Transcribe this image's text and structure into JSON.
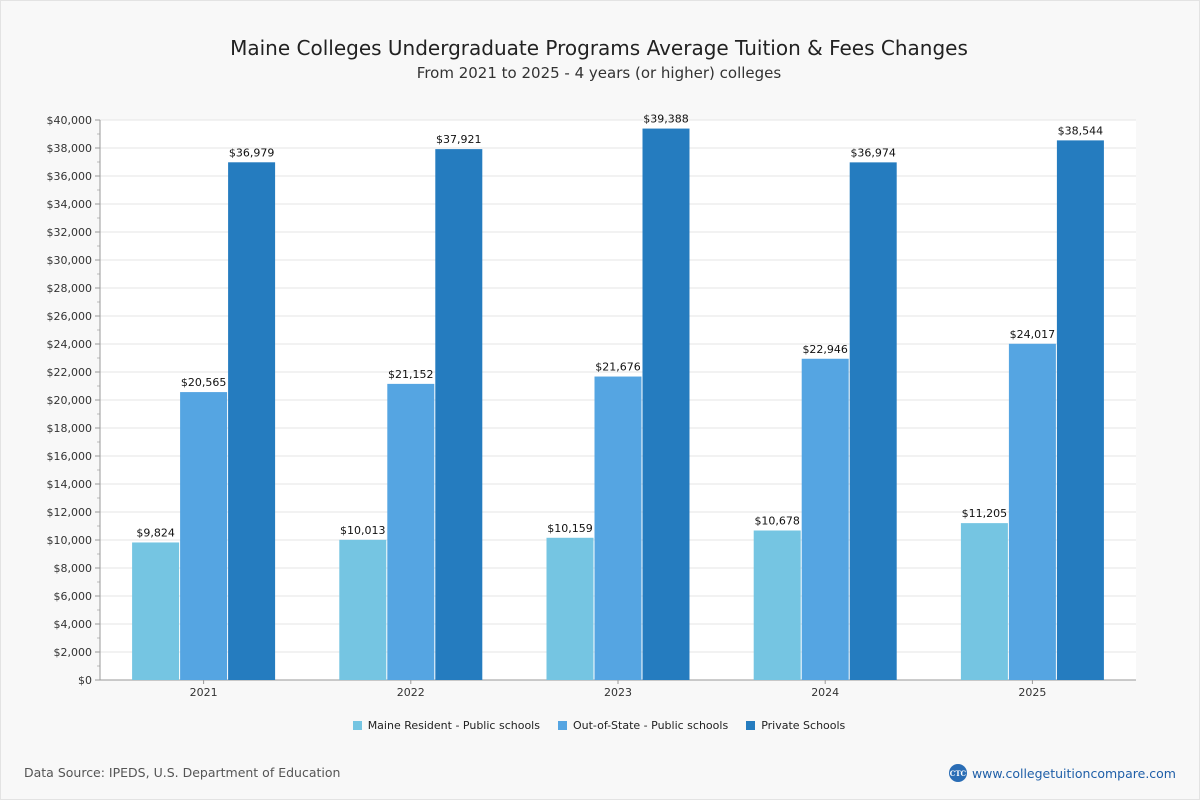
{
  "chart_data": {
    "type": "bar",
    "title": "Maine Colleges Undergraduate Programs Average Tuition & Fees Changes",
    "subtitle": "From 2021 to 2025 - 4 years (or higher) colleges",
    "categories": [
      "2021",
      "2022",
      "2023",
      "2024",
      "2025"
    ],
    "series": [
      {
        "name": "Maine Resident - Public schools",
        "color": "#75c5e2",
        "values": [
          9824,
          10013,
          10159,
          10678,
          11205
        ],
        "labels": [
          "$9,824",
          "$10,013",
          "$10,159",
          "$10,678",
          "$11,205"
        ]
      },
      {
        "name": "Out-of-State - Public schools",
        "color": "#55a5e2",
        "values": [
          20565,
          21152,
          21676,
          22946,
          24017
        ],
        "labels": [
          "$20,565",
          "$21,152",
          "$21,676",
          "$22,946",
          "$24,017"
        ]
      },
      {
        "name": "Private Schools",
        "color": "#257cbf",
        "values": [
          36979,
          37921,
          39388,
          36974,
          38544
        ],
        "labels": [
          "$36,979",
          "$37,921",
          "$39,388",
          "$36,974",
          "$38,544"
        ]
      }
    ],
    "ylim": [
      0,
      40000
    ],
    "yticks": [
      0,
      2000,
      4000,
      6000,
      8000,
      10000,
      12000,
      14000,
      16000,
      18000,
      20000,
      22000,
      24000,
      26000,
      28000,
      30000,
      32000,
      34000,
      36000,
      38000,
      40000
    ],
    "ytick_labels": [
      "$0",
      "$2,000",
      "$4,000",
      "$6,000",
      "$8,000",
      "$10,000",
      "$12,000",
      "$14,000",
      "$16,000",
      "$18,000",
      "$20,000",
      "$22,000",
      "$24,000",
      "$26,000",
      "$28,000",
      "$30,000",
      "$32,000",
      "$34,000",
      "$36,000",
      "$38,000",
      "$40,000"
    ],
    "xlabel": "",
    "ylabel": "",
    "grid": true,
    "legend_position": "bottom"
  },
  "footer": {
    "source": "Data Source: IPEDS, U.S. Department of Education",
    "brand_logo_text": "CTC",
    "brand_url": "www.collegetuitioncompare.com"
  }
}
